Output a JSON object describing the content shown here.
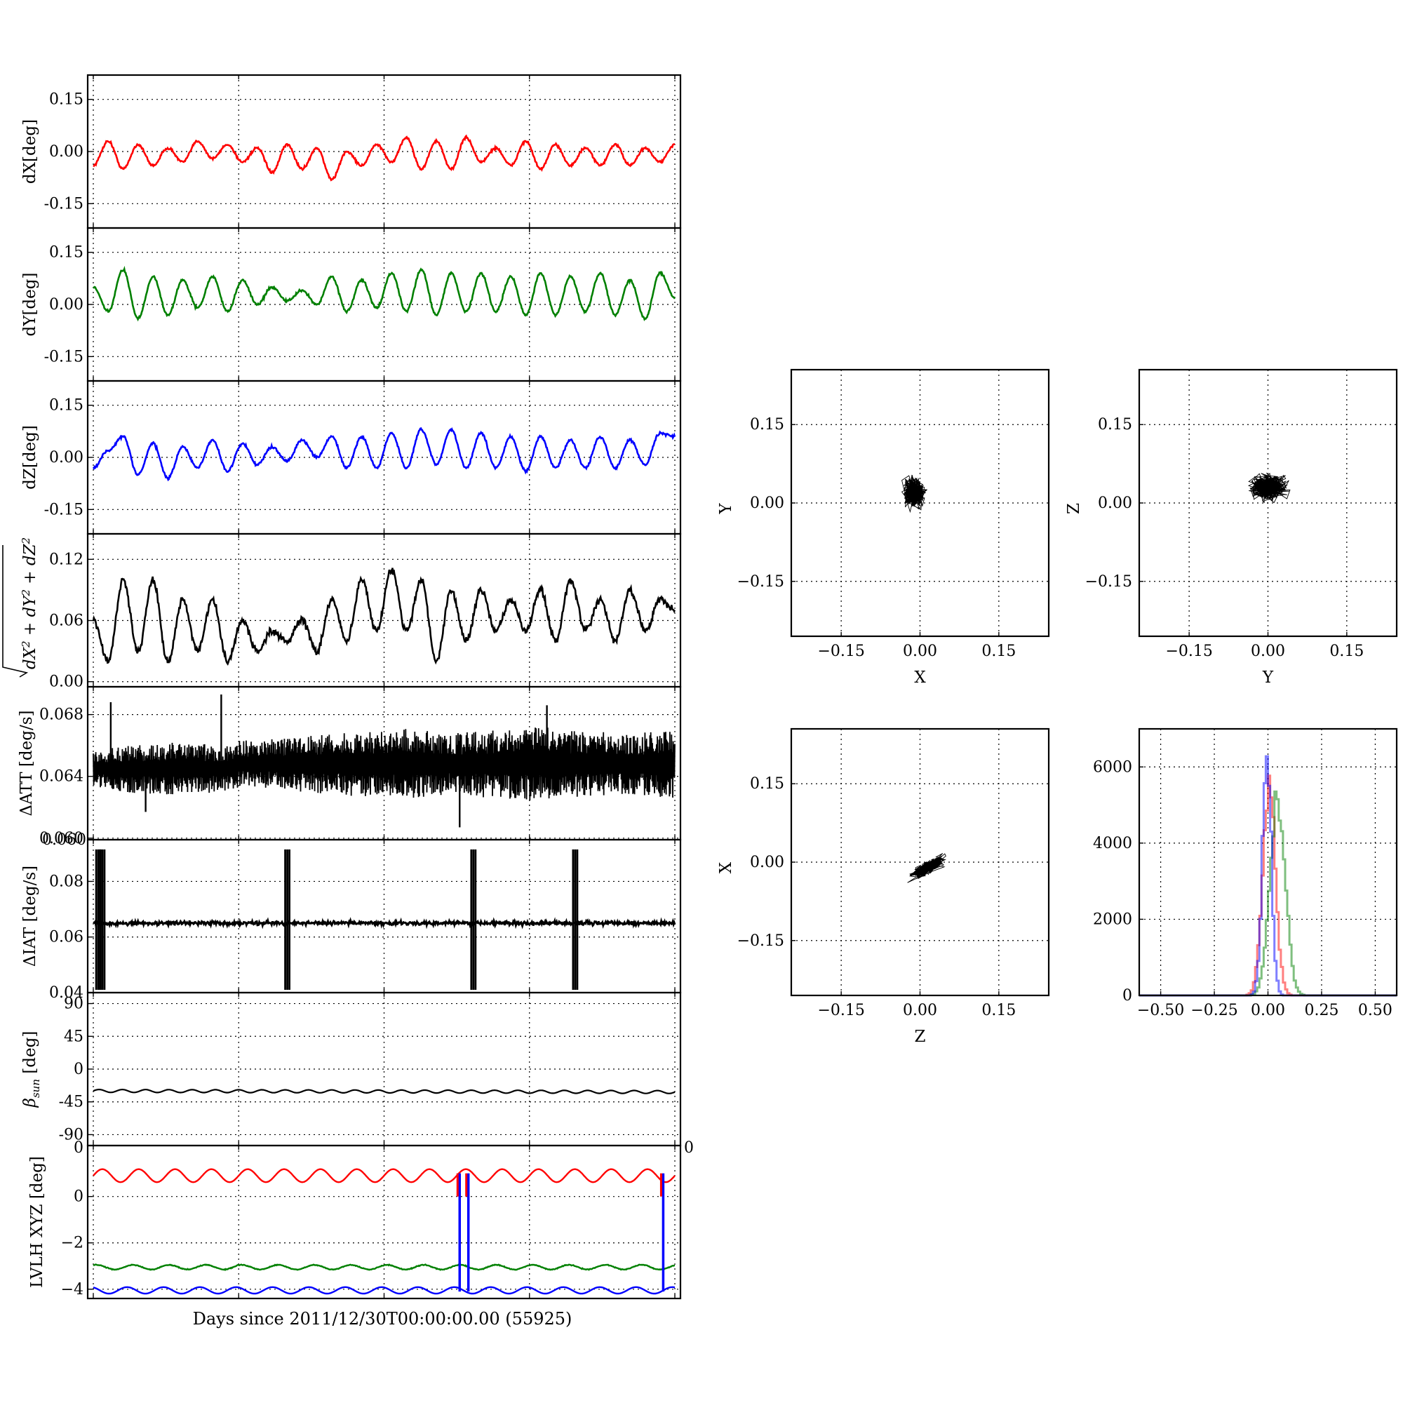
{
  "xlabel": "Days since 2011/12/30T00:00:00.00 (55925)",
  "colors": {
    "red": "#ff0000",
    "green": "#008000",
    "blue": "#0000ff",
    "black": "#000000"
  },
  "chart_data": [
    {
      "type": "line",
      "ylabel": "dX[deg]",
      "ylim": [
        -0.22,
        0.22
      ],
      "yticks": [
        "0.15",
        "0.00",
        "-0.15"
      ],
      "grid": true,
      "series": [
        {
          "color": "#ff0000",
          "values": [
            -0.04,
            0.03,
            -0.05,
            0.02,
            -0.04,
            0.01,
            -0.03,
            0.03,
            -0.02,
            0.02,
            -0.03,
            0.01,
            -0.06,
            0.02,
            -0.05,
            0.01,
            -0.08,
            0.0,
            -0.04,
            0.02,
            -0.03,
            0.04,
            -0.05,
            0.03,
            -0.05,
            0.04,
            -0.03,
            0.01,
            -0.04,
            0.03,
            -0.05,
            0.02,
            -0.04,
            0.01,
            -0.04,
            0.02,
            -0.04,
            0.01,
            -0.03,
            0.02
          ]
        }
      ]
    },
    {
      "type": "line",
      "ylabel": "dY[deg]",
      "ylim": [
        -0.22,
        0.22
      ],
      "yticks": [
        "0.15",
        "0.00",
        "-0.15"
      ],
      "grid": true,
      "series": [
        {
          "color": "#008000",
          "values": [
            0.05,
            -0.02,
            0.1,
            -0.04,
            0.08,
            -0.03,
            0.07,
            -0.01,
            0.08,
            -0.02,
            0.07,
            0.0,
            0.05,
            0.01,
            0.04,
            0.0,
            0.08,
            -0.02,
            0.07,
            -0.01,
            0.09,
            -0.02,
            0.1,
            -0.03,
            0.09,
            -0.02,
            0.09,
            -0.02,
            0.08,
            -0.03,
            0.09,
            -0.03,
            0.08,
            -0.02,
            0.09,
            -0.03,
            0.07,
            -0.04,
            0.09,
            0.02
          ]
        }
      ]
    },
    {
      "type": "line",
      "ylabel": "dZ[deg]",
      "ylim": [
        -0.22,
        0.22
      ],
      "yticks": [
        "0.15",
        "0.00",
        "-0.15"
      ],
      "grid": true,
      "series": [
        {
          "color": "#0000ff",
          "values": [
            -0.03,
            0.02,
            0.06,
            -0.05,
            0.04,
            -0.06,
            0.03,
            -0.03,
            0.05,
            -0.04,
            0.04,
            -0.02,
            0.03,
            -0.01,
            0.05,
            0.0,
            0.06,
            -0.03,
            0.06,
            -0.03,
            0.07,
            -0.03,
            0.08,
            -0.02,
            0.08,
            -0.03,
            0.07,
            -0.03,
            0.06,
            -0.04,
            0.06,
            -0.03,
            0.05,
            -0.03,
            0.06,
            -0.03,
            0.05,
            -0.02,
            0.07,
            0.06
          ]
        }
      ]
    },
    {
      "type": "line",
      "ylabel": "sqrt(dX^2+dY^2+dZ^2)",
      "ylim": [
        -0.005,
        0.145
      ],
      "yticks": [
        "0.12",
        "0.06",
        "0.00"
      ],
      "grid": true,
      "series": [
        {
          "color": "#000000",
          "values": [
            0.06,
            0.02,
            0.1,
            0.03,
            0.1,
            0.02,
            0.08,
            0.03,
            0.08,
            0.02,
            0.06,
            0.03,
            0.05,
            0.04,
            0.06,
            0.03,
            0.08,
            0.04,
            0.1,
            0.05,
            0.11,
            0.05,
            0.1,
            0.02,
            0.09,
            0.04,
            0.09,
            0.05,
            0.08,
            0.05,
            0.09,
            0.04,
            0.1,
            0.05,
            0.08,
            0.04,
            0.09,
            0.05,
            0.08,
            0.07
          ]
        }
      ]
    },
    {
      "type": "line",
      "ylabel": "ΔATT [deg/s]",
      "ylim": [
        0.0599,
        0.0698
      ],
      "yticks": [
        "0.068",
        "0.064",
        "0.060"
      ],
      "grid": true,
      "series": [
        {
          "color": "#000000",
          "baseline_amplitude": [
            0.0012,
            0.0016,
            0.0017,
            0.0015,
            0.0016,
            0.0019,
            0.0021,
            0.0023,
            0.002,
            0.0022,
            0.0024,
            0.0021,
            0.002,
            0.0022
          ],
          "spikes": [
            [
              0.03,
              0.0688
            ],
            [
              0.22,
              0.0693
            ],
            [
              0.09,
              0.0617
            ],
            [
              0.63,
              0.0607
            ],
            [
              0.78,
              0.0686
            ]
          ]
        }
      ]
    },
    {
      "type": "line",
      "ylabel": "ΔIAT [deg/s]",
      "ylim": [
        0.04,
        0.095
      ],
      "yticks": [
        "0.08",
        "0.06",
        "0.04"
      ],
      "grid": true,
      "series": [
        {
          "color": "#000000",
          "level": 0.065,
          "burst_positions": [
            0.005,
            0.012,
            0.33,
            0.65,
            0.825
          ]
        }
      ]
    },
    {
      "type": "line",
      "ylabel": "β_sun [deg]",
      "ylim": [
        -105,
        105
      ],
      "yticks": [
        "90",
        "45",
        "0",
        "-45",
        "-90"
      ],
      "grid": true,
      "series": [
        {
          "color": "#000000",
          "mean": -30,
          "amplitude": 2,
          "cycles": 25
        }
      ]
    },
    {
      "type": "line",
      "ylabel": "LVLH XYZ [deg]",
      "ylim": [
        -4.4,
        2.2
      ],
      "yticks": [
        "0",
        "−2",
        "−4"
      ],
      "corner_labels": {
        "left": "0",
        "right": "0"
      },
      "grid": true,
      "series": [
        {
          "color": "#ff0000",
          "mean": 0.9,
          "amplitude": 0.28,
          "cycles": 16
        },
        {
          "color": "#008000",
          "mean": -3.05,
          "amplitude": 0.1,
          "cycles": 16
        },
        {
          "color": "#0000ff",
          "mean": -4.05,
          "amplitude": 0.14,
          "cycles": 16
        }
      ],
      "vertical_lines": [
        0.63,
        0.645,
        0.98
      ]
    },
    {
      "type": "scatter",
      "xlabel": "X",
      "ylabel": "Y",
      "xlim": [
        -0.245,
        0.245
      ],
      "ylim": [
        -0.255,
        0.255
      ],
      "xticks": [
        "−0.15",
        "0.00",
        "0.15"
      ],
      "yticks": [
        "0.15",
        "0.00",
        "−0.15"
      ],
      "cloud_center": [
        -0.01,
        0.02
      ],
      "cloud_extent": [
        0.05,
        0.07
      ],
      "grid": true
    },
    {
      "type": "scatter",
      "xlabel": "Y",
      "ylabel": "Z",
      "xlim": [
        -0.245,
        0.245
      ],
      "ylim": [
        -0.255,
        0.255
      ],
      "xticks": [
        "−0.15",
        "0.00",
        "0.15"
      ],
      "yticks": [
        "0.15",
        "0.00",
        "−0.15"
      ],
      "cloud_center": [
        0.0,
        0.03
      ],
      "cloud_extent": [
        0.08,
        0.06
      ],
      "grid": true
    },
    {
      "type": "scatter",
      "xlabel": "Z",
      "ylabel": "X",
      "xlim": [
        -0.245,
        0.245
      ],
      "ylim": [
        -0.255,
        0.255
      ],
      "xticks": [
        "−0.15",
        "0.00",
        "0.15"
      ],
      "yticks": [
        "0.15",
        "0.00",
        "−0.15"
      ],
      "cloud_center": [
        0.015,
        -0.01
      ],
      "cloud_extent": [
        0.075,
        0.045
      ],
      "grid": true
    },
    {
      "type": "histogram",
      "xlim": [
        -0.6,
        0.6
      ],
      "ylim": [
        0,
        7000
      ],
      "xticks": [
        "−0.50",
        "−0.25",
        "0.00",
        "0.25",
        "0.50"
      ],
      "yticks": [
        "6000",
        "4000",
        "2000",
        "0"
      ],
      "grid": true,
      "series": [
        {
          "color": "#ff0000",
          "center": 0.0,
          "width": 0.05,
          "peak": 5900
        },
        {
          "color": "#008000",
          "center": 0.04,
          "width": 0.06,
          "peak": 5600
        },
        {
          "color": "#0000ff",
          "center": -0.01,
          "width": 0.035,
          "peak": 6800
        }
      ]
    }
  ]
}
